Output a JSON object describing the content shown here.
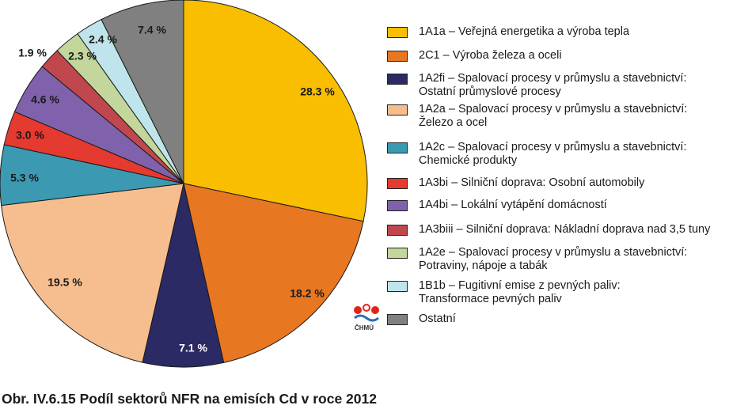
{
  "chart_data": {
    "type": "pie",
    "title": "Obr. IV.6.15  Podíl sektorů NFR na emisích Cd v roce 2012",
    "slices": [
      {
        "label": "1A1a – Veřejná energetika a výroba tepla",
        "value": 28.3,
        "value_label": "28.3 %",
        "color": "#F9BE00"
      },
      {
        "label": "2C1 – Výroba železa a oceli",
        "value": 18.2,
        "value_label": "18.2 %",
        "color": "#E87722"
      },
      {
        "label": "1A2fi – Spalovací procesy v průmyslu a stavebnictví:\nOstatní průmyslové procesy",
        "value": 7.1,
        "value_label": "7.1 %",
        "color": "#2B2A64"
      },
      {
        "label": "1A2a – Spalovací procesy v průmyslu a stavebnictví:\nŽelezo a ocel",
        "value": 19.5,
        "value_label": "19.5 %",
        "color": "#F6BE8E"
      },
      {
        "label": "1A2c – Spalovací procesy v průmyslu a stavebnictví:\nChemické produkty",
        "value": 5.3,
        "value_label": "5.3 %",
        "color": "#3B9AB2"
      },
      {
        "label": "1A3bi – Silniční doprava: Osobní automobily",
        "value": 3.0,
        "value_label": "3.0 %",
        "color": "#E53A2F"
      },
      {
        "label": "1A4bi – Lokální vytápění domácností",
        "value": 4.6,
        "value_label": "4.6 %",
        "color": "#7F62AB"
      },
      {
        "label": "1A3biii – Silniční doprava: Nákladní doprava nad 3,5 tuny",
        "value": 1.9,
        "value_label": "1.9 %",
        "color": "#C0474E"
      },
      {
        "label": "1A2e – Spalovací procesy v průmyslu a stavebnictví:\nPotraviny, nápoje a tabák",
        "value": 2.3,
        "value_label": "2.3 %",
        "color": "#C3D69B"
      },
      {
        "label": "1B1b – Fugitivní emise z pevných paliv:\n Transformace pevných paliv",
        "value": 2.4,
        "value_label": "2.4 %",
        "color": "#BFE4EC"
      },
      {
        "label": "Ostatní",
        "value": 7.4,
        "value_label": "7.4 %",
        "color": "#808080"
      }
    ],
    "legend_position": "right"
  },
  "logo": {
    "text": "ČHMÚ",
    "icon": "chmu-logo-icon"
  }
}
